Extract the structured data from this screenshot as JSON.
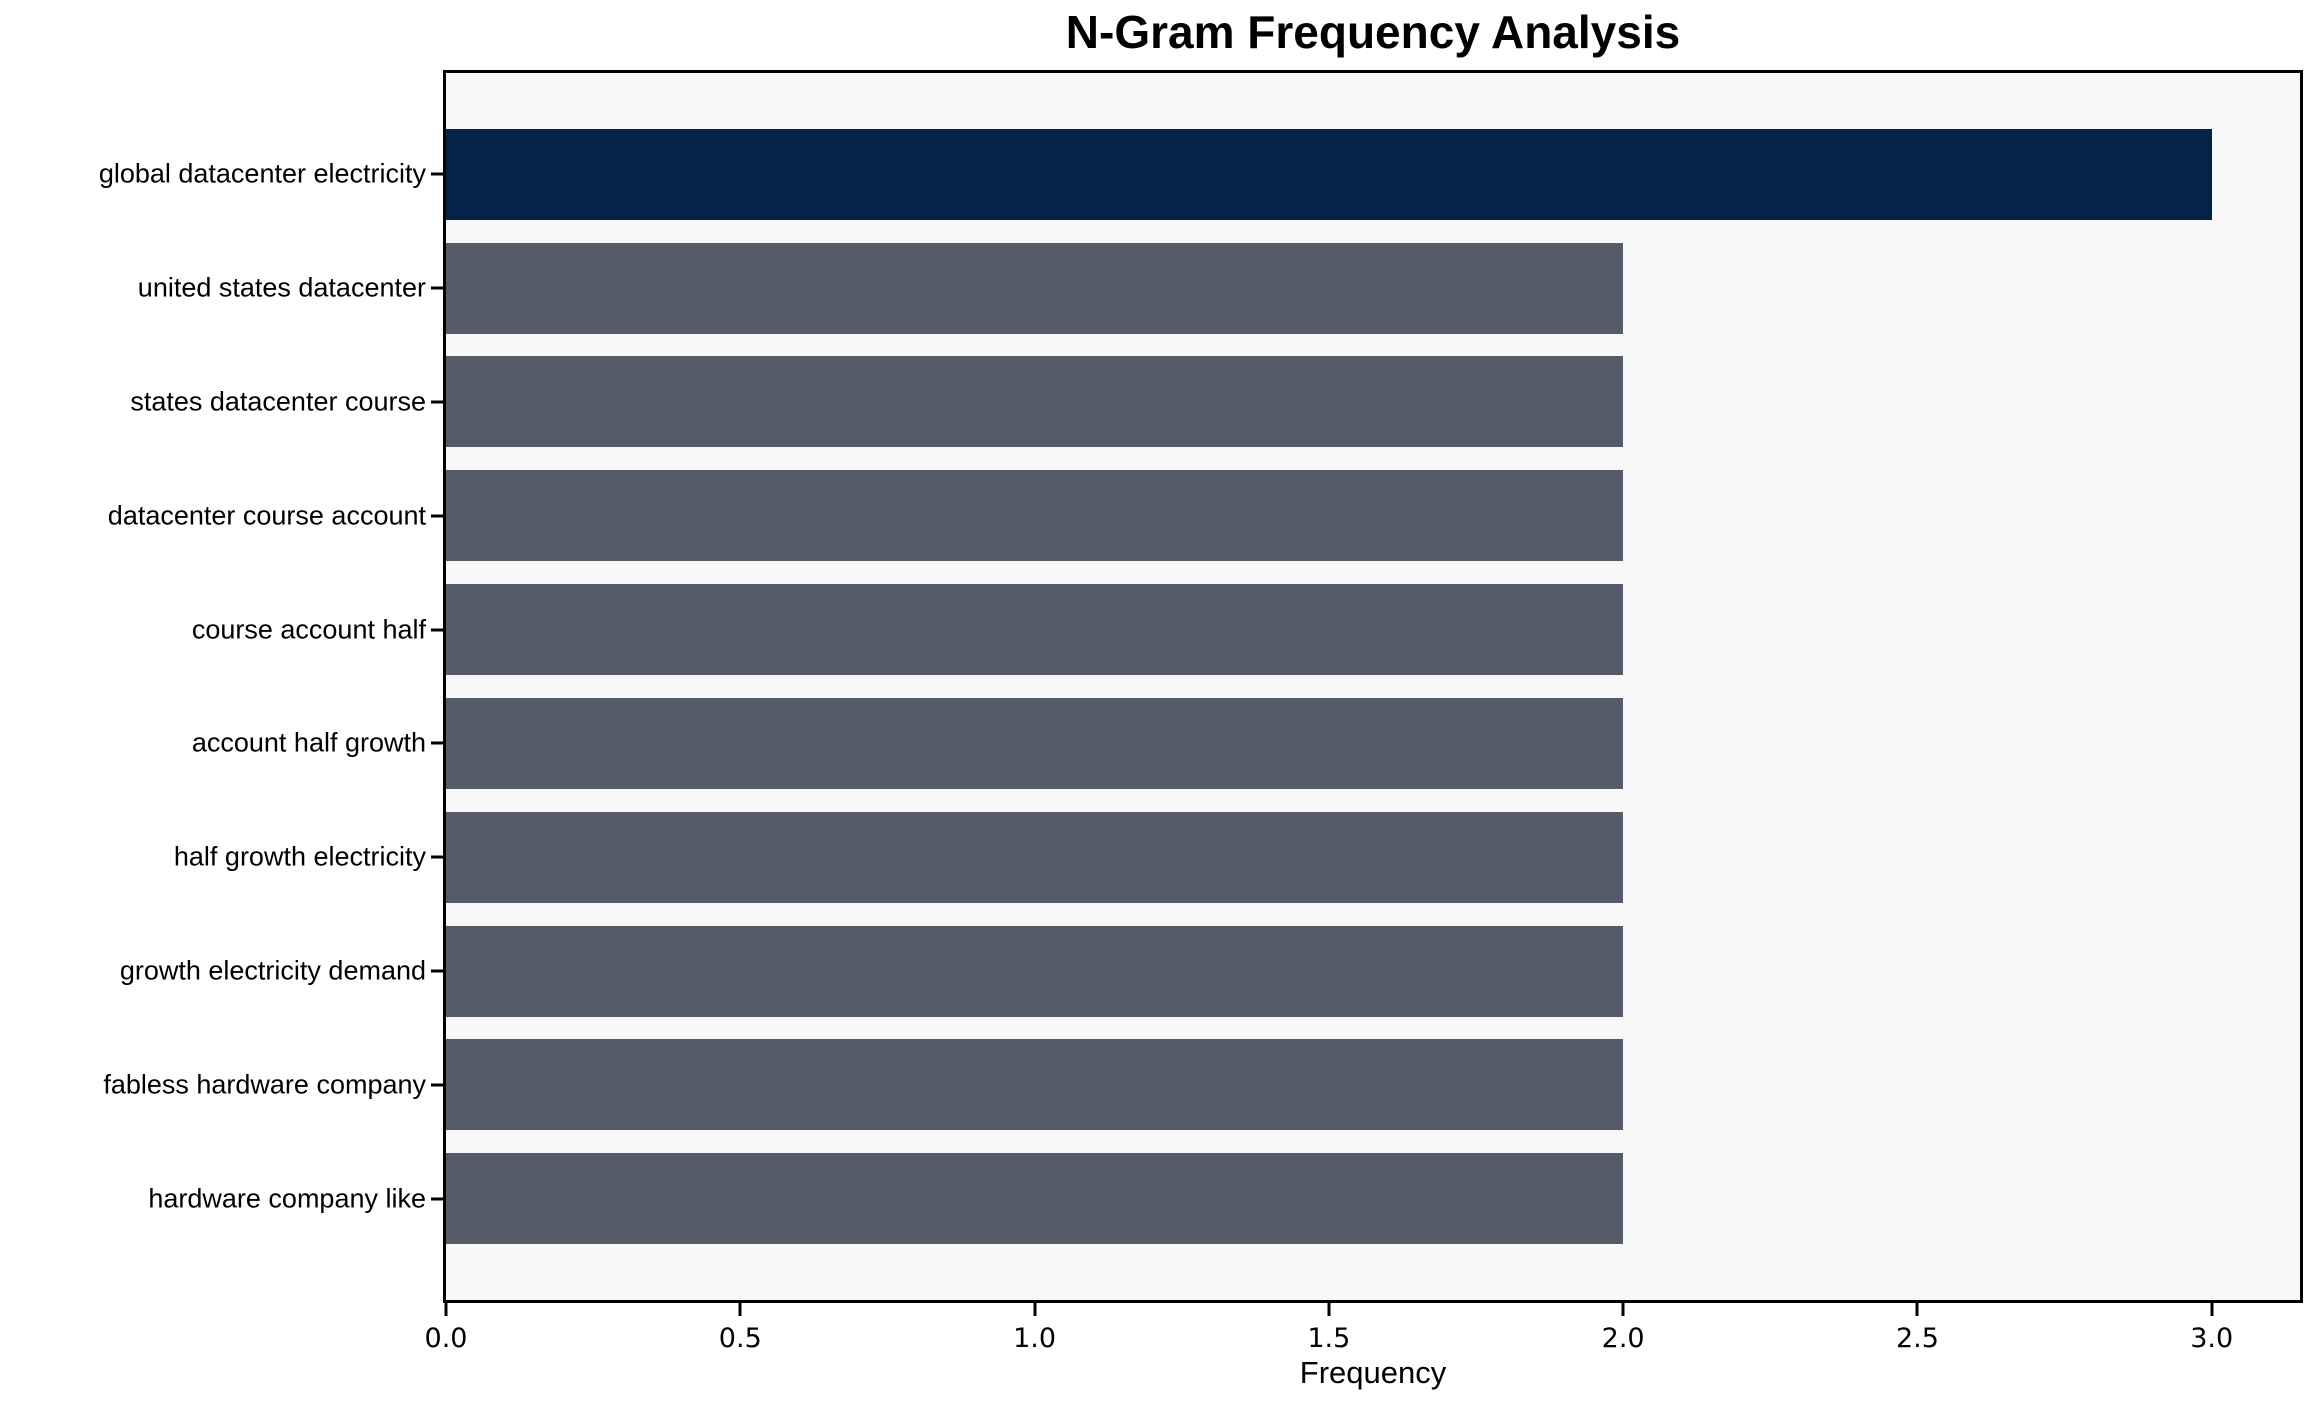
{
  "chart_data": {
    "type": "bar",
    "orientation": "horizontal",
    "title": "N-Gram Frequency Analysis",
    "xlabel": "Frequency",
    "ylabel": "",
    "categories": [
      "global datacenter electricity",
      "united states datacenter",
      "states datacenter course",
      "datacenter course account",
      "course account half",
      "account half growth",
      "half growth electricity",
      "growth electricity demand",
      "fabless hardware company",
      "hardware company like"
    ],
    "values": [
      3,
      2,
      2,
      2,
      2,
      2,
      2,
      2,
      2,
      2
    ],
    "bar_colors": [
      "#052348",
      "#565b6a",
      "#565b6a",
      "#565b6a",
      "#565b6a",
      "#565b6a",
      "#565b6a",
      "#565b6a",
      "#565b6a",
      "#565b6a"
    ],
    "xlim": [
      0,
      3.15
    ],
    "xticks": [
      {
        "label": "0.0",
        "value": 0.0
      },
      {
        "label": "0.5",
        "value": 0.5
      },
      {
        "label": "1.0",
        "value": 1.0
      },
      {
        "label": "1.5",
        "value": 1.5
      },
      {
        "label": "2.0",
        "value": 2.0
      },
      {
        "label": "2.5",
        "value": 2.5
      },
      {
        "label": "3.0",
        "value": 3.0
      }
    ],
    "grid": false,
    "legend": null,
    "colors": {
      "highlight": "#052348",
      "default_bar": "#565b6a",
      "plot_background": "#f8f8f8",
      "figure_background": "#ffffff",
      "spine": "#000000",
      "text": "#000000"
    }
  }
}
